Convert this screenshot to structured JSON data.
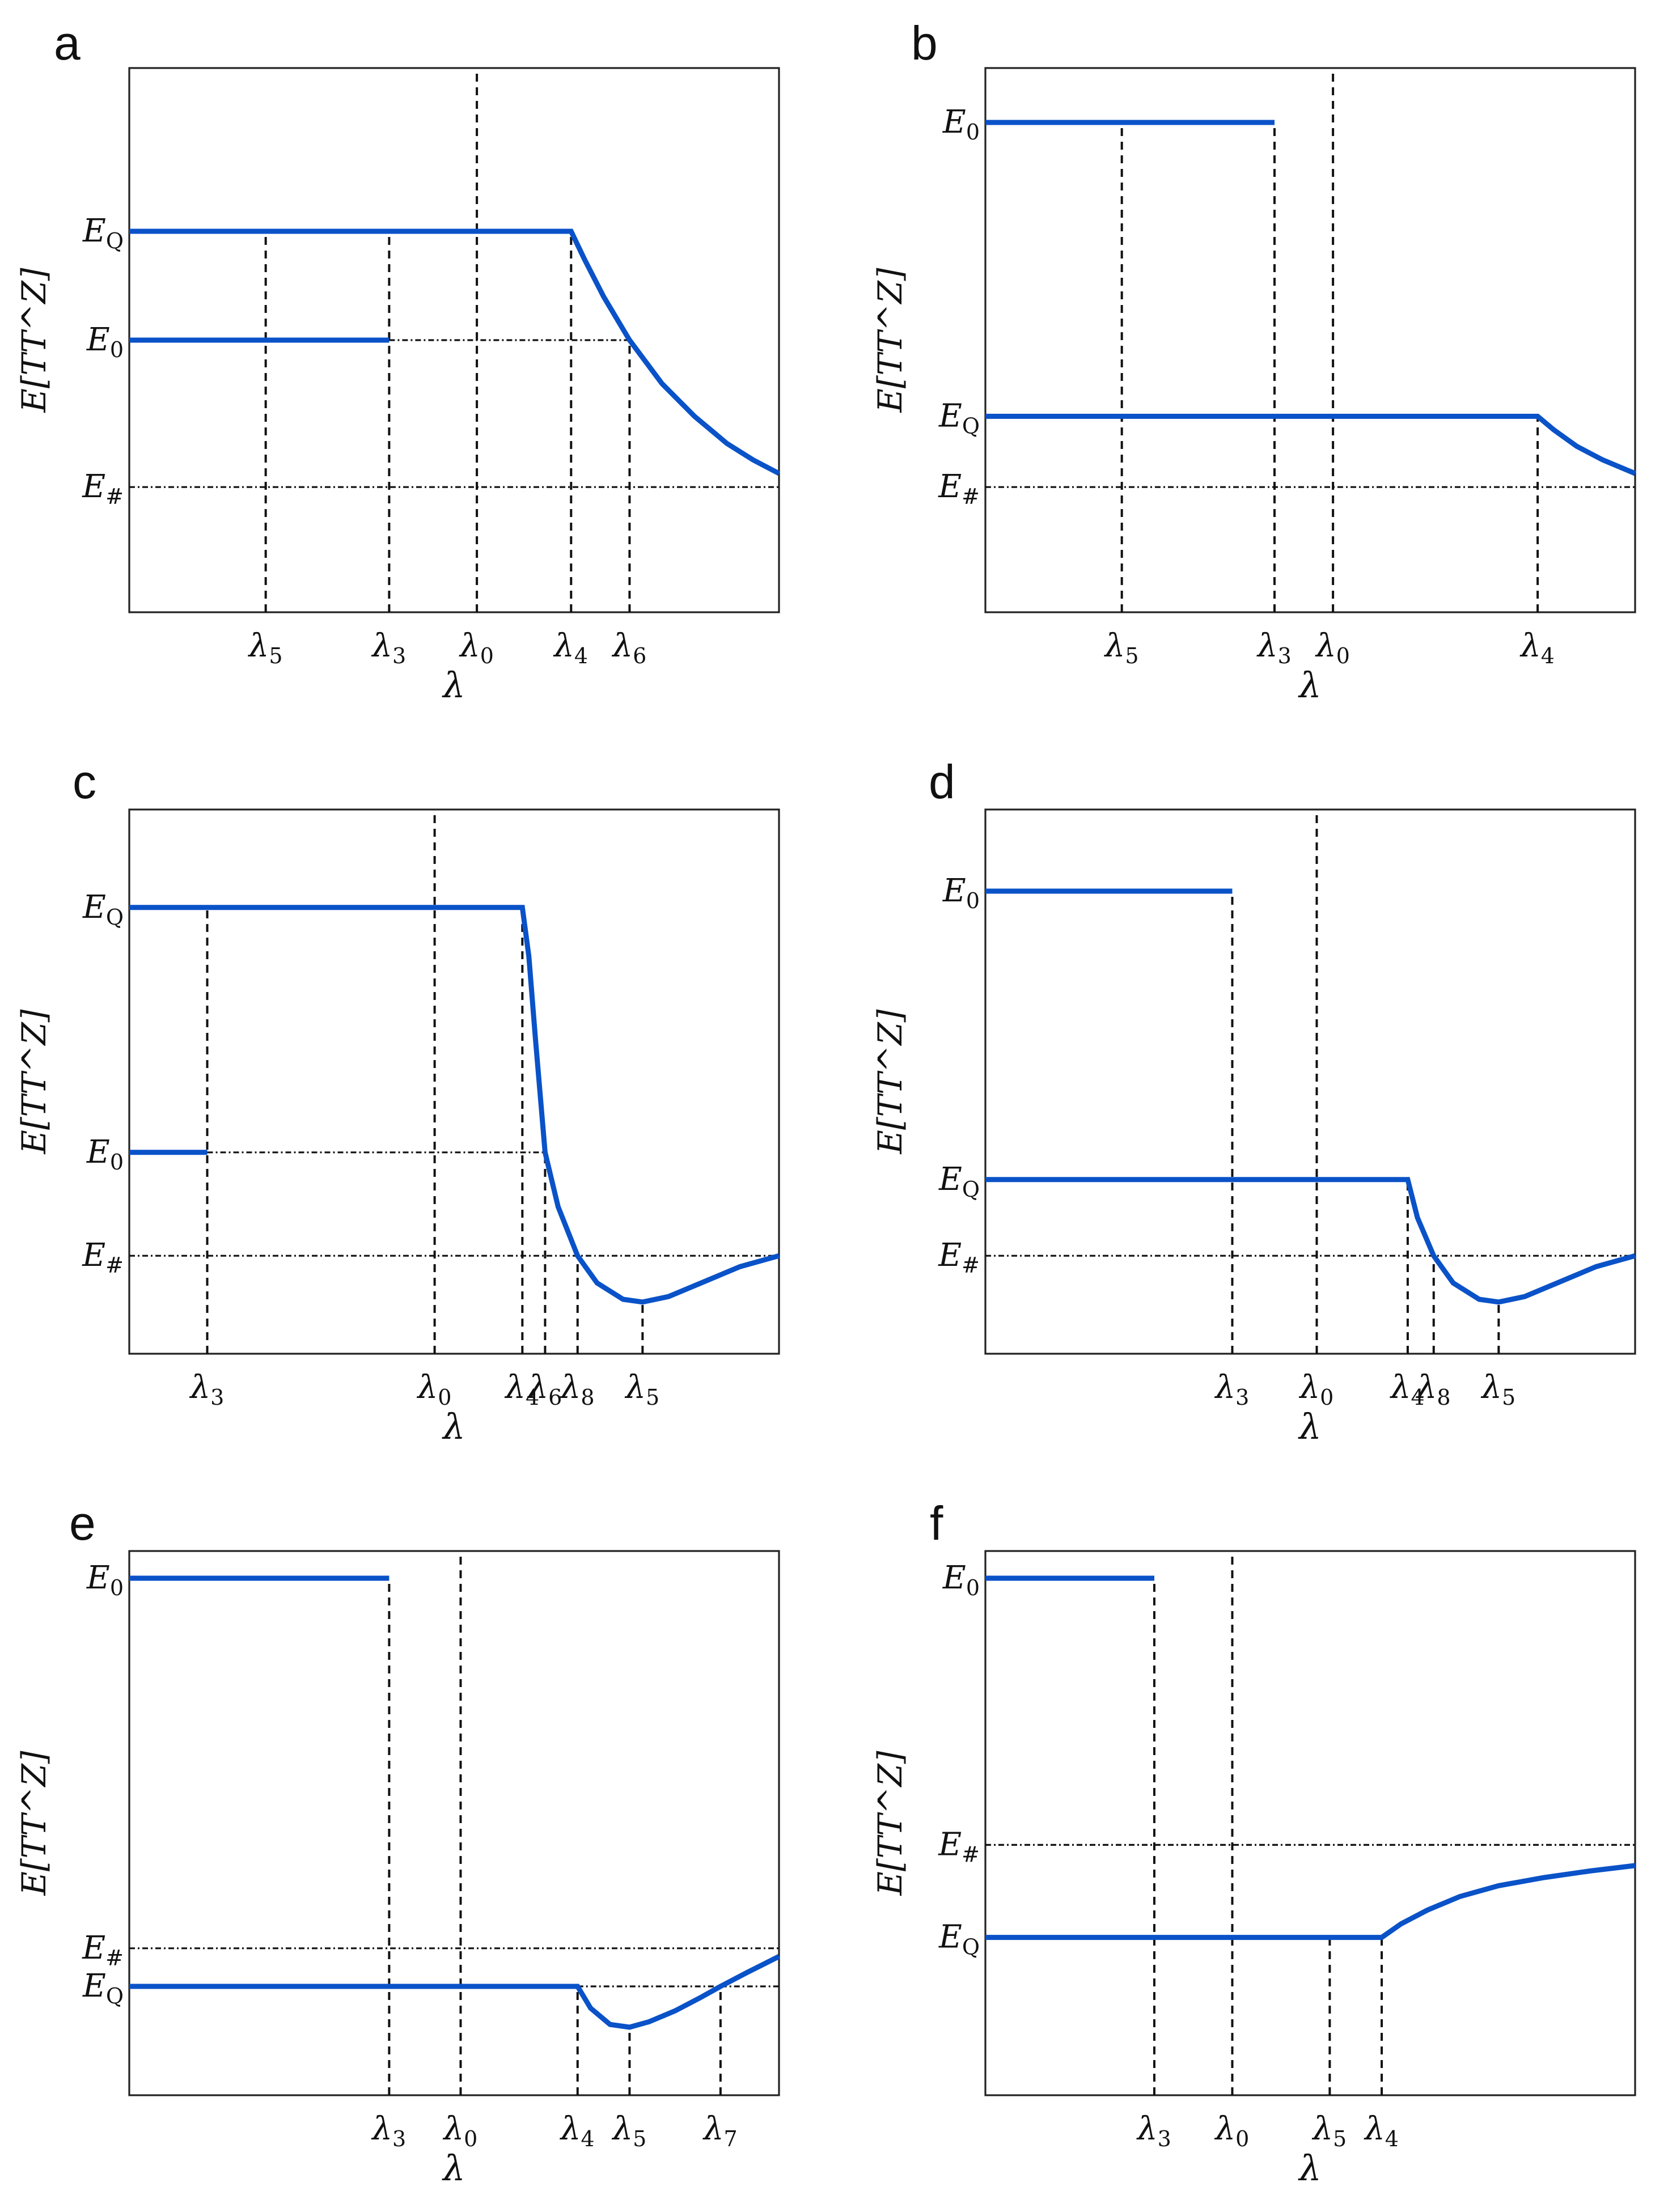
{
  "chart_data": [
    {
      "type": "line",
      "panel": "a",
      "xlabel": "λ",
      "ylabel": "E[TT^Z]",
      "xlim": [
        0,
        100
      ],
      "ylim": [
        0,
        100
      ],
      "yticks": [
        {
          "name": "E",
          "sub": "Q",
          "value": 70
        },
        {
          "name": "E",
          "sub": "0",
          "value": 50
        },
        {
          "name": "E",
          "sub": "#",
          "value": 23
        }
      ],
      "xticks": [
        {
          "name": "λ",
          "sub": "5",
          "value": 21
        },
        {
          "name": "λ",
          "sub": "3",
          "value": 40
        },
        {
          "name": "λ",
          "sub": "0",
          "value": 53.5
        },
        {
          "name": "λ",
          "sub": "4",
          "value": 68
        },
        {
          "name": "λ",
          "sub": "6",
          "value": 77
        }
      ],
      "series": [
        {
          "name": "E0 branch",
          "points": [
            [
              0,
              50
            ],
            [
              40,
              50
            ]
          ]
        },
        {
          "name": "EQ branch",
          "points": [
            [
              0,
              70
            ],
            [
              68,
              70
            ],
            [
              70,
              65
            ],
            [
              73,
              58
            ],
            [
              77,
              50
            ],
            [
              82,
              42
            ],
            [
              87,
              36
            ],
            [
              92,
              31
            ],
            [
              96,
              28
            ],
            [
              100,
              25.5
            ]
          ]
        }
      ],
      "vlines": [
        {
          "x": 21,
          "y0": 0,
          "y1": 70
        },
        {
          "x": 40,
          "y0": 0,
          "y1": 70
        },
        {
          "x": 53.5,
          "y0": 0,
          "y1": 100
        },
        {
          "x": 68,
          "y0": 0,
          "y1": 70
        },
        {
          "x": 77,
          "y0": 0,
          "y1": 50
        }
      ],
      "hlines": [
        {
          "y": 50,
          "x0": 40,
          "x1": 77
        },
        {
          "y": 23,
          "x0": 0,
          "x1": 100
        }
      ]
    },
    {
      "type": "line",
      "panel": "b",
      "xlabel": "λ",
      "ylabel": "E[TT^Z]",
      "xlim": [
        0,
        100
      ],
      "ylim": [
        0,
        100
      ],
      "yticks": [
        {
          "name": "E",
          "sub": "0",
          "value": 90
        },
        {
          "name": "E",
          "sub": "Q",
          "value": 36
        },
        {
          "name": "E",
          "sub": "#",
          "value": 23
        }
      ],
      "xticks": [
        {
          "name": "λ",
          "sub": "5",
          "value": 21
        },
        {
          "name": "λ",
          "sub": "3",
          "value": 44.5
        },
        {
          "name": "λ",
          "sub": "0",
          "value": 53.5
        },
        {
          "name": "λ",
          "sub": "4",
          "value": 85
        }
      ],
      "series": [
        {
          "name": "E0 branch",
          "points": [
            [
              0,
              90
            ],
            [
              44.5,
              90
            ]
          ]
        },
        {
          "name": "EQ branch",
          "points": [
            [
              0,
              36
            ],
            [
              85,
              36
            ],
            [
              87.5,
              33.5
            ],
            [
              91,
              30.5
            ],
            [
              95,
              28
            ],
            [
              100,
              25.5
            ]
          ]
        }
      ],
      "vlines": [
        {
          "x": 21,
          "y0": 0,
          "y1": 90
        },
        {
          "x": 44.5,
          "y0": 0,
          "y1": 90
        },
        {
          "x": 53.5,
          "y0": 0,
          "y1": 100
        },
        {
          "x": 85,
          "y0": 0,
          "y1": 36
        }
      ],
      "hlines": [
        {
          "y": 23,
          "x0": 0,
          "x1": 100
        }
      ]
    },
    {
      "type": "line",
      "panel": "c",
      "xlabel": "λ",
      "ylabel": "E[TT^Z]",
      "xlim": [
        0,
        100
      ],
      "ylim": [
        0,
        100
      ],
      "yticks": [
        {
          "name": "E",
          "sub": "Q",
          "value": 82
        },
        {
          "name": "E",
          "sub": "0",
          "value": 37
        },
        {
          "name": "E",
          "sub": "#",
          "value": 18
        }
      ],
      "xticks": [
        {
          "name": "λ",
          "sub": "3",
          "value": 12
        },
        {
          "name": "λ",
          "sub": "0",
          "value": 47
        },
        {
          "name": "λ",
          "sub": "4",
          "value": 60.5
        },
        {
          "name": "λ",
          "sub": "6",
          "value": 64
        },
        {
          "name": "λ",
          "sub": "8",
          "value": 69
        },
        {
          "name": "λ",
          "sub": "5",
          "value": 79
        }
      ],
      "series": [
        {
          "name": "E0 branch",
          "points": [
            [
              0,
              37
            ],
            [
              12,
              37
            ]
          ]
        },
        {
          "name": "EQ branch",
          "points": [
            [
              0,
              82
            ],
            [
              60.5,
              82
            ],
            [
              61.5,
              73
            ],
            [
              62.5,
              58
            ],
            [
              64,
              37
            ],
            [
              66,
              27
            ],
            [
              69,
              18
            ],
            [
              72,
              13
            ],
            [
              76,
              10
            ],
            [
              79,
              9.5
            ],
            [
              83,
              10.5
            ],
            [
              88,
              13
            ],
            [
              94,
              16
            ],
            [
              100,
              18
            ]
          ]
        }
      ],
      "vlines": [
        {
          "x": 12,
          "y0": 0,
          "y1": 82
        },
        {
          "x": 47,
          "y0": 0,
          "y1": 100
        },
        {
          "x": 60.5,
          "y0": 0,
          "y1": 82
        },
        {
          "x": 64,
          "y0": 0,
          "y1": 37
        },
        {
          "x": 69,
          "y0": 0,
          "y1": 18
        },
        {
          "x": 79,
          "y0": 0,
          "y1": 9.5
        }
      ],
      "hlines": [
        {
          "y": 37,
          "x0": 12,
          "x1": 64
        },
        {
          "y": 18,
          "x0": 0,
          "x1": 100
        }
      ]
    },
    {
      "type": "line",
      "panel": "d",
      "xlabel": "λ",
      "ylabel": "E[TT^Z]",
      "xlim": [
        0,
        100
      ],
      "ylim": [
        0,
        100
      ],
      "yticks": [
        {
          "name": "E",
          "sub": "0",
          "value": 85
        },
        {
          "name": "E",
          "sub": "Q",
          "value": 32
        },
        {
          "name": "E",
          "sub": "#",
          "value": 18
        }
      ],
      "xticks": [
        {
          "name": "λ",
          "sub": "3",
          "value": 38
        },
        {
          "name": "λ",
          "sub": "0",
          "value": 51
        },
        {
          "name": "λ",
          "sub": "4",
          "value": 65
        },
        {
          "name": "λ",
          "sub": "8",
          "value": 69
        },
        {
          "name": "λ",
          "sub": "5",
          "value": 79
        }
      ],
      "series": [
        {
          "name": "E0 branch",
          "points": [
            [
              0,
              85
            ],
            [
              38,
              85
            ]
          ]
        },
        {
          "name": "EQ branch",
          "points": [
            [
              0,
              32
            ],
            [
              65,
              32
            ],
            [
              66.5,
              25
            ],
            [
              69,
              18
            ],
            [
              72,
              13
            ],
            [
              76,
              10
            ],
            [
              79,
              9.5
            ],
            [
              83,
              10.5
            ],
            [
              88,
              13
            ],
            [
              94,
              16
            ],
            [
              100,
              18
            ]
          ]
        }
      ],
      "vlines": [
        {
          "x": 38,
          "y0": 0,
          "y1": 85
        },
        {
          "x": 51,
          "y0": 0,
          "y1": 100
        },
        {
          "x": 65,
          "y0": 0,
          "y1": 32
        },
        {
          "x": 69,
          "y0": 0,
          "y1": 18
        },
        {
          "x": 79,
          "y0": 0,
          "y1": 9.5
        }
      ],
      "hlines": [
        {
          "y": 18,
          "x0": 0,
          "x1": 100
        }
      ]
    },
    {
      "type": "line",
      "panel": "e",
      "xlabel": "λ",
      "ylabel": "E[TT^Z]",
      "xlim": [
        0,
        100
      ],
      "ylim": [
        0,
        100
      ],
      "yticks": [
        {
          "name": "E",
          "sub": "0",
          "value": 95
        },
        {
          "name": "E",
          "sub": "#",
          "value": 27
        },
        {
          "name": "E",
          "sub": "Q",
          "value": 20
        }
      ],
      "xticks": [
        {
          "name": "λ",
          "sub": "3",
          "value": 40
        },
        {
          "name": "λ",
          "sub": "0",
          "value": 51
        },
        {
          "name": "λ",
          "sub": "4",
          "value": 69
        },
        {
          "name": "λ",
          "sub": "5",
          "value": 77
        },
        {
          "name": "λ",
          "sub": "7",
          "value": 91
        }
      ],
      "series": [
        {
          "name": "E0 branch",
          "points": [
            [
              0,
              95
            ],
            [
              40,
              95
            ]
          ]
        },
        {
          "name": "EQ branch",
          "points": [
            [
              0,
              20
            ],
            [
              69,
              20
            ],
            [
              71,
              16
            ],
            [
              74,
              13
            ],
            [
              77,
              12.5
            ],
            [
              80,
              13.5
            ],
            [
              84,
              15.5
            ],
            [
              88,
              18
            ],
            [
              91,
              20
            ],
            [
              95,
              22.5
            ],
            [
              100,
              25.5
            ]
          ]
        }
      ],
      "vlines": [
        {
          "x": 40,
          "y0": 0,
          "y1": 95
        },
        {
          "x": 51,
          "y0": 0,
          "y1": 100
        },
        {
          "x": 69,
          "y0": 0,
          "y1": 20
        },
        {
          "x": 77,
          "y0": 0,
          "y1": 12.5
        },
        {
          "x": 91,
          "y0": 0,
          "y1": 20
        }
      ],
      "hlines": [
        {
          "y": 27,
          "x0": 0,
          "x1": 100
        },
        {
          "y": 20,
          "x0": 69,
          "x1": 100
        }
      ]
    },
    {
      "type": "line",
      "panel": "f",
      "xlabel": "λ",
      "ylabel": "E[TT^Z]",
      "xlim": [
        0,
        100
      ],
      "ylim": [
        0,
        100
      ],
      "yticks": [
        {
          "name": "E",
          "sub": "0",
          "value": 95
        },
        {
          "name": "E",
          "sub": "#",
          "value": 46
        },
        {
          "name": "E",
          "sub": "Q",
          "value": 29
        }
      ],
      "xticks": [
        {
          "name": "λ",
          "sub": "3",
          "value": 26
        },
        {
          "name": "λ",
          "sub": "0",
          "value": 38
        },
        {
          "name": "λ",
          "sub": "5",
          "value": 53
        },
        {
          "name": "λ",
          "sub": "4",
          "value": 61
        }
      ],
      "series": [
        {
          "name": "E0 branch",
          "points": [
            [
              0,
              95
            ],
            [
              26,
              95
            ]
          ]
        },
        {
          "name": "EQ branch",
          "points": [
            [
              0,
              29
            ],
            [
              61,
              29
            ],
            [
              64,
              31.5
            ],
            [
              68,
              34
            ],
            [
              73,
              36.5
            ],
            [
              79,
              38.5
            ],
            [
              86,
              40
            ],
            [
              93,
              41.2
            ],
            [
              100,
              42.2
            ]
          ]
        }
      ],
      "vlines": [
        {
          "x": 26,
          "y0": 0,
          "y1": 95
        },
        {
          "x": 38,
          "y0": 0,
          "y1": 100
        },
        {
          "x": 53,
          "y0": 0,
          "y1": 29
        },
        {
          "x": 61,
          "y0": 0,
          "y1": 29
        }
      ],
      "hlines": [
        {
          "y": 46,
          "x0": 0,
          "x1": 100
        }
      ]
    }
  ]
}
